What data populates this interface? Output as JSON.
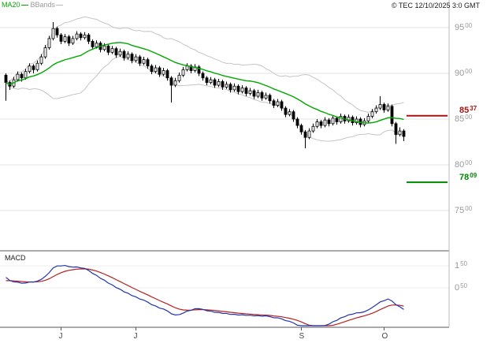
{
  "legend": {
    "ma20": "MA20",
    "bbands": "BBands"
  },
  "header": {
    "copyright": "© TEC 12/10/2025 3:0 GMT"
  },
  "price_axis": {
    "ticks": [
      {
        "value": 9500,
        "main": "95",
        "dec": "00"
      },
      {
        "value": 9000,
        "main": "90",
        "dec": "00"
      },
      {
        "value": 8500,
        "main": "85",
        "dec": "00"
      },
      {
        "value": 8000,
        "main": "80",
        "dec": "00"
      },
      {
        "value": 7500,
        "main": "75",
        "dec": "00"
      }
    ]
  },
  "levels": {
    "resistance": {
      "value": 8537,
      "main": "85",
      "dec": "37",
      "color": "#aa1111"
    },
    "support": {
      "value": 7809,
      "main": "78",
      "dec": "09",
      "color": "#008800"
    }
  },
  "macd_panel": {
    "label": "MACD",
    "ticks": [
      {
        "value": 150,
        "main": "1",
        "dec": "50"
      },
      {
        "value": 50,
        "main": "0",
        "dec": "50"
      }
    ]
  },
  "x_axis": {
    "ticks": [
      {
        "label": "J",
        "index": 14
      },
      {
        "label": "J",
        "index": 33
      },
      {
        "label": "S",
        "index": 75
      },
      {
        "label": "O",
        "index": 96
      }
    ]
  },
  "chart_data": {
    "type": "candlestick",
    "title": "Daily price chart with MA20, Bollinger Bands, support/resistance levels and MACD",
    "unit": "price shown x100 (e.g. 8537 = 85.37)",
    "ylim_price": [
      7060,
      9800
    ],
    "macd_ylim": [
      -1.21,
      2.07
    ],
    "grid": true,
    "ma20_period": 20,
    "bbands": {
      "period": 20,
      "stddev": 2
    },
    "macd": {
      "fast": 12,
      "slow": 26,
      "signal": 9
    },
    "colors": {
      "ma20": "#00a800",
      "bbands": "#c4c4c4",
      "macd_line": "#2233aa",
      "signal_line": "#b22222",
      "candle_up": "#ffffff",
      "candle_down": "#000000",
      "grid": "#e3e3e3",
      "frame": "#555555"
    },
    "levels": [
      {
        "value": 8537,
        "color": "#aa1111",
        "kind": "resistance"
      },
      {
        "value": 7809,
        "color": "#008800",
        "kind": "support"
      }
    ],
    "candles": [
      [
        8980,
        9000,
        8700,
        8900
      ],
      [
        8900,
        8920,
        8820,
        8860
      ],
      [
        8860,
        8960,
        8840,
        8930
      ],
      [
        8930,
        9020,
        8910,
        8990
      ],
      [
        8990,
        9010,
        8910,
        8950
      ],
      [
        8950,
        9050,
        8930,
        9020
      ],
      [
        9020,
        9110,
        9000,
        9080
      ],
      [
        9080,
        9100,
        9000,
        9040
      ],
      [
        9040,
        9140,
        9020,
        9110
      ],
      [
        9110,
        9210,
        9090,
        9180
      ],
      [
        9180,
        9310,
        9160,
        9280
      ],
      [
        9280,
        9410,
        9260,
        9380
      ],
      [
        9380,
        9560,
        9360,
        9490
      ],
      [
        9490,
        9510,
        9390,
        9420
      ],
      [
        9420,
        9440,
        9320,
        9350
      ],
      [
        9350,
        9430,
        9330,
        9400
      ],
      [
        9400,
        9420,
        9300,
        9330
      ],
      [
        9330,
        9410,
        9310,
        9380
      ],
      [
        9380,
        9460,
        9360,
        9430
      ],
      [
        9430,
        9450,
        9360,
        9390
      ],
      [
        9390,
        9450,
        9370,
        9420
      ],
      [
        9420,
        9440,
        9320,
        9350
      ],
      [
        9350,
        9370,
        9260,
        9290
      ],
      [
        9290,
        9360,
        9270,
        9330
      ],
      [
        9330,
        9350,
        9230,
        9260
      ],
      [
        9260,
        9330,
        9240,
        9300
      ],
      [
        9300,
        9320,
        9200,
        9230
      ],
      [
        9230,
        9300,
        9210,
        9270
      ],
      [
        9270,
        9290,
        9170,
        9200
      ],
      [
        9200,
        9270,
        9180,
        9240
      ],
      [
        9240,
        9260,
        9140,
        9170
      ],
      [
        9170,
        9240,
        9150,
        9210
      ],
      [
        9210,
        9230,
        9110,
        9140
      ],
      [
        9140,
        9210,
        9120,
        9180
      ],
      [
        9180,
        9200,
        9080,
        9110
      ],
      [
        9110,
        9180,
        9090,
        9150
      ],
      [
        9150,
        9170,
        9050,
        9080
      ],
      [
        9080,
        9100,
        8990,
        9020
      ],
      [
        9020,
        9090,
        9000,
        9060
      ],
      [
        9060,
        9080,
        8960,
        8990
      ],
      [
        8990,
        9060,
        8970,
        9030
      ],
      [
        9030,
        9050,
        8920,
        8950
      ],
      [
        8950,
        8970,
        8680,
        8870
      ],
      [
        8870,
        8950,
        8850,
        8920
      ],
      [
        8920,
        9010,
        8900,
        8980
      ],
      [
        8980,
        9070,
        8960,
        9040
      ],
      [
        9040,
        9110,
        9020,
        9080
      ],
      [
        9080,
        9100,
        9000,
        9030
      ],
      [
        9030,
        9100,
        9010,
        9070
      ],
      [
        9070,
        9090,
        8970,
        9000
      ],
      [
        9000,
        9020,
        8920,
        8950
      ],
      [
        8950,
        8970,
        8870,
        8900
      ],
      [
        8900,
        8960,
        8880,
        8930
      ],
      [
        8930,
        8950,
        8840,
        8870
      ],
      [
        8870,
        8940,
        8850,
        8910
      ],
      [
        8910,
        8930,
        8820,
        8850
      ],
      [
        8850,
        8910,
        8830,
        8880
      ],
      [
        8880,
        8900,
        8790,
        8820
      ],
      [
        8820,
        8890,
        8800,
        8860
      ],
      [
        8860,
        8880,
        8770,
        8800
      ],
      [
        8800,
        8870,
        8780,
        8840
      ],
      [
        8840,
        8860,
        8750,
        8780
      ],
      [
        8780,
        8840,
        8760,
        8810
      ],
      [
        8810,
        8830,
        8720,
        8750
      ],
      [
        8750,
        8820,
        8730,
        8790
      ],
      [
        8790,
        8810,
        8700,
        8730
      ],
      [
        8730,
        8790,
        8710,
        8760
      ],
      [
        8760,
        8780,
        8670,
        8700
      ],
      [
        8700,
        8720,
        8620,
        8650
      ],
      [
        8650,
        8720,
        8630,
        8690
      ],
      [
        8690,
        8710,
        8590,
        8620
      ],
      [
        8620,
        8640,
        8520,
        8550
      ],
      [
        8550,
        8610,
        8530,
        8580
      ],
      [
        8580,
        8600,
        8470,
        8500
      ],
      [
        8500,
        8520,
        8400,
        8430
      ],
      [
        8430,
        8450,
        8330,
        8360
      ],
      [
        8360,
        8380,
        8180,
        8300
      ],
      [
        8300,
        8400,
        8280,
        8370
      ],
      [
        8370,
        8450,
        8350,
        8420
      ],
      [
        8420,
        8500,
        8400,
        8470
      ],
      [
        8470,
        8490,
        8400,
        8430
      ],
      [
        8430,
        8520,
        8410,
        8490
      ],
      [
        8490,
        8510,
        8420,
        8450
      ],
      [
        8450,
        8540,
        8430,
        8510
      ],
      [
        8510,
        8530,
        8440,
        8470
      ],
      [
        8470,
        8560,
        8450,
        8530
      ],
      [
        8530,
        8550,
        8450,
        8480
      ],
      [
        8480,
        8550,
        8460,
        8520
      ],
      [
        8520,
        8540,
        8430,
        8460
      ],
      [
        8460,
        8530,
        8440,
        8500
      ],
      [
        8500,
        8520,
        8410,
        8440
      ],
      [
        8440,
        8510,
        8420,
        8480
      ],
      [
        8480,
        8560,
        8460,
        8530
      ],
      [
        8530,
        8610,
        8510,
        8580
      ],
      [
        8580,
        8650,
        8560,
        8620
      ],
      [
        8620,
        8750,
        8600,
        8660
      ],
      [
        8660,
        8680,
        8570,
        8600
      ],
      [
        8600,
        8670,
        8580,
        8640
      ],
      [
        8640,
        8660,
        8420,
        8450
      ],
      [
        8450,
        8470,
        8230,
        8330
      ],
      [
        8330,
        8410,
        8310,
        8370
      ],
      [
        8370,
        8390,
        8260,
        8310
      ]
    ]
  }
}
